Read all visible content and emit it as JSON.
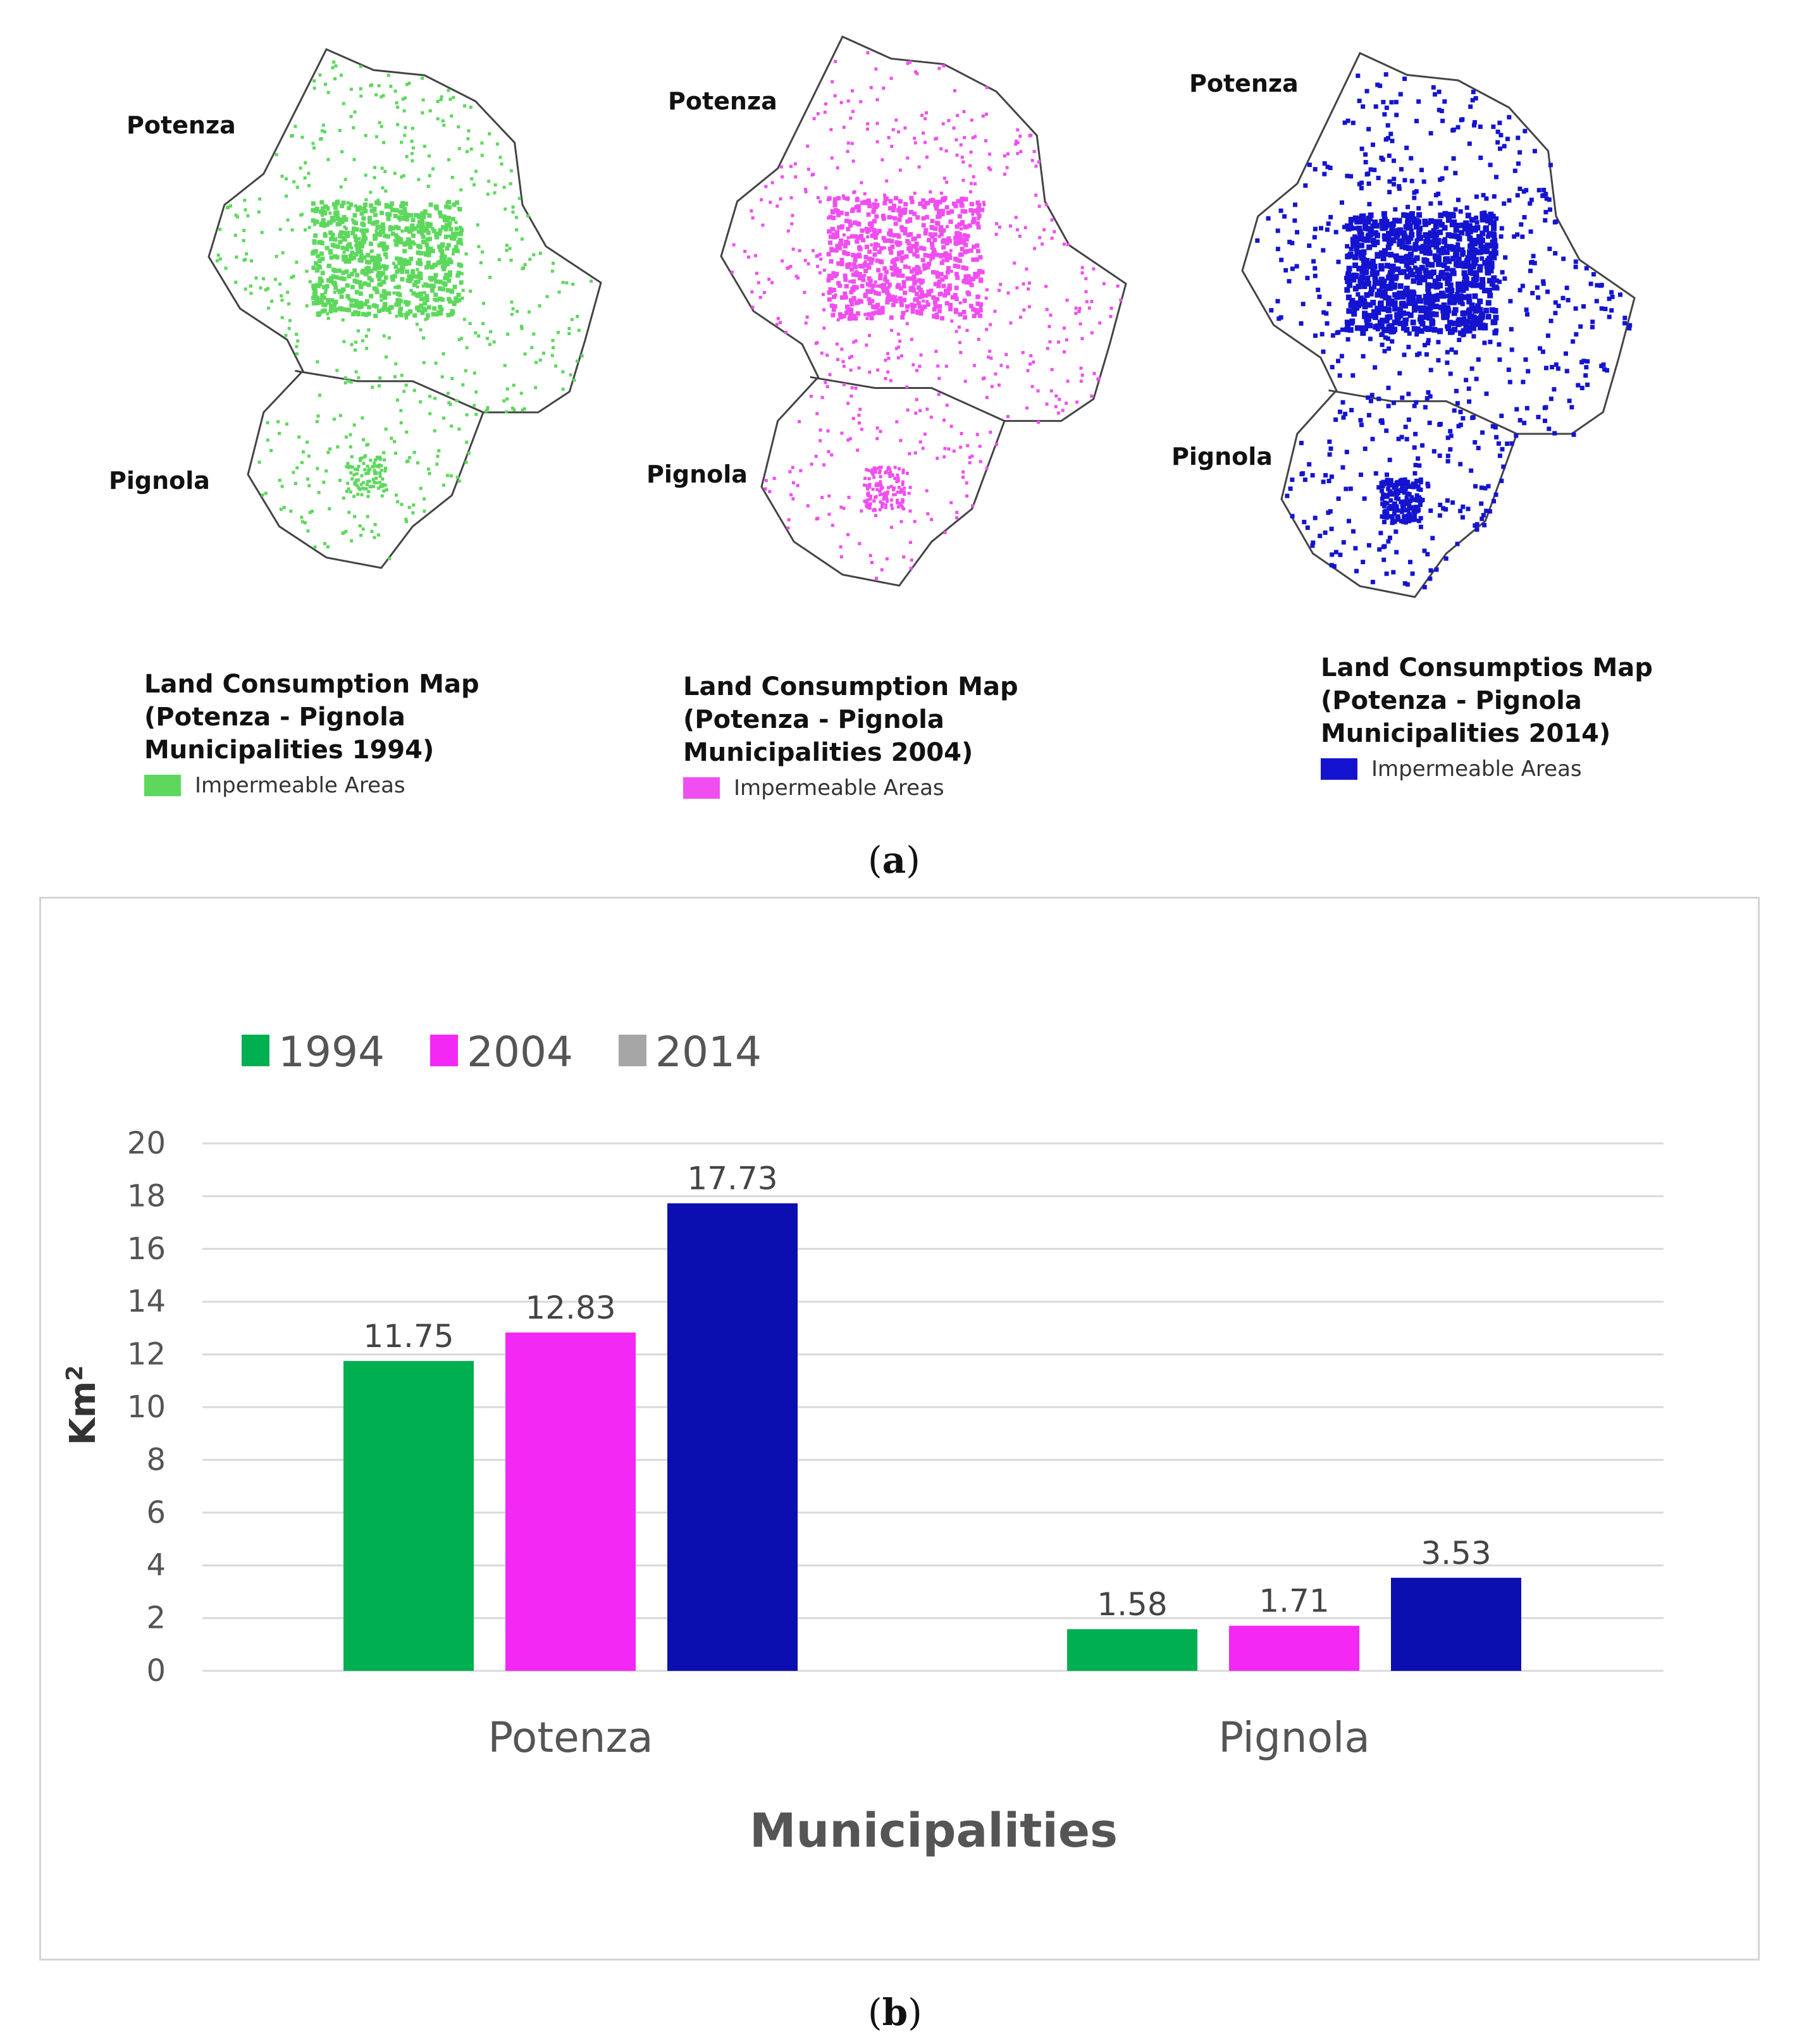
{
  "panel_a": {
    "maps": [
      {
        "label_top": "Potenza",
        "label_bottom": "Pignola",
        "legend_title": [
          "Land Consumption Map",
          "(Potenza - Pignola",
          "Municipalities 1994)"
        ],
        "legend_item": "Impermeable Areas",
        "color": "#5dd85d"
      },
      {
        "label_top": "Potenza",
        "label_bottom": "Pignola",
        "legend_title": [
          "Land Consumption Map",
          "(Potenza - Pignola",
          "Municipalities 2004)"
        ],
        "legend_item": "Impermeable Areas",
        "color": "#f04ef0"
      },
      {
        "label_top": "Potenza",
        "label_bottom": "Pignola",
        "legend_title": [
          "Land Consumptios Map",
          "(Potenza - Pignola",
          "Municipalities 2014)"
        ],
        "legend_item": "Impermeable Areas",
        "color": "#1414d0"
      }
    ],
    "caption_open": "(",
    "caption_letter": "a",
    "caption_close": ")"
  },
  "panel_b": {
    "caption_open": "(",
    "caption_letter": "b",
    "caption_close": ")"
  },
  "chart_data": {
    "type": "bar",
    "title": "",
    "categories": [
      "Potenza",
      "Pignola"
    ],
    "series": [
      {
        "name": "1994",
        "values": [
          11.75,
          1.58
        ],
        "color": "#00b050",
        "legend_color": "#00b050"
      },
      {
        "name": "2004",
        "values": [
          12.83,
          1.71
        ],
        "color": "#f428f4",
        "legend_color": "#f428f4"
      },
      {
        "name": "2014",
        "values": [
          17.73,
          3.53
        ],
        "color": "#0c0fb0",
        "legend_color": "#a6a6a6"
      }
    ],
    "data_labels": [
      [
        "11.75",
        "1.58"
      ],
      [
        "12.83",
        "1.71"
      ],
      [
        "17.73",
        "3.53"
      ]
    ],
    "xlabel": "Municipalities",
    "ylabel_base": "Km",
    "ylabel_sup": "2",
    "ylim": [
      0,
      20
    ],
    "yticks": [
      "0",
      "2",
      "4",
      "6",
      "8",
      "10",
      "12",
      "14",
      "16",
      "18",
      "20"
    ],
    "grid": true,
    "legend_position": "top-left"
  }
}
